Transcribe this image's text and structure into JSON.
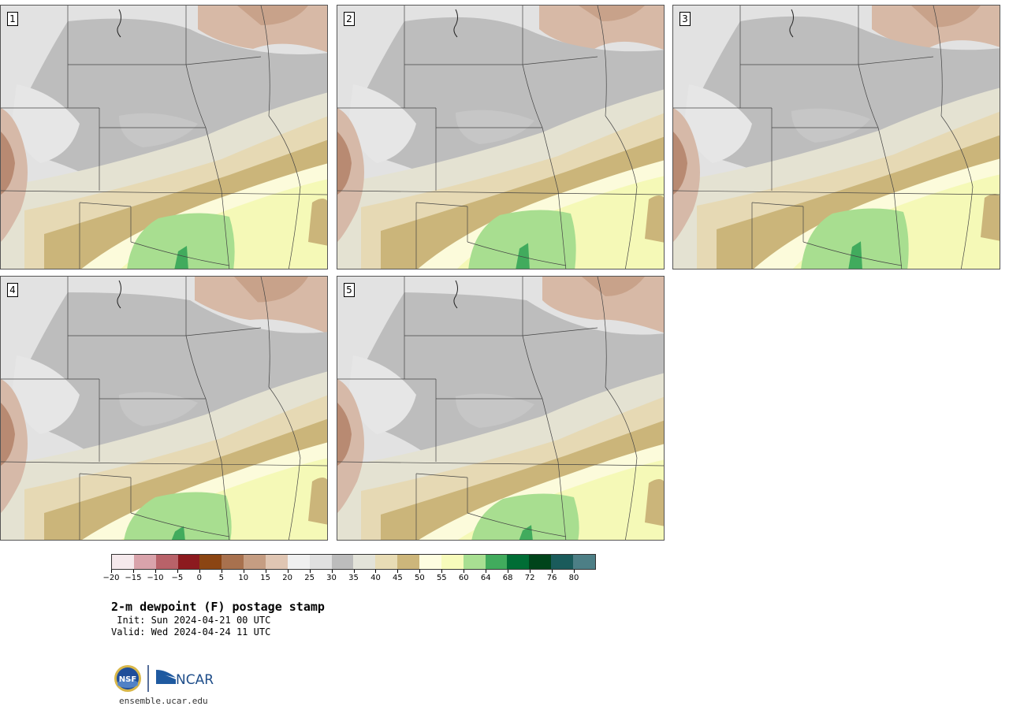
{
  "title": "2-m dewpoint (F) postage stamp",
  "init_line": " Init: Sun 2024-04-21 00 UTC",
  "valid_line": "Valid: Wed 2024-04-24 11 UTC",
  "website": "ensemble.ucar.edu",
  "logos": {
    "nsf": "NSF",
    "ncar": "NCAR"
  },
  "members": [
    {
      "label": "1"
    },
    {
      "label": "2"
    },
    {
      "label": "3"
    },
    {
      "label": "4"
    },
    {
      "label": "5"
    }
  ],
  "colorbar": {
    "tick_labels": [
      "−20",
      "−15",
      "−10",
      "−5",
      "0",
      "5",
      "10",
      "15",
      "20",
      "25",
      "30",
      "35",
      "40",
      "45",
      "50",
      "55",
      "60",
      "64",
      "68",
      "72",
      "76",
      "80"
    ],
    "colors": [
      "#f5e9ec",
      "#d9a3ab",
      "#b86269",
      "#8c1a1f",
      "#8b4513",
      "#a8714e",
      "#c59d82",
      "#e0c6b3",
      "#f0f0f0",
      "#e0e0e0",
      "#bcbcbc",
      "#e3e3d9",
      "#e8dcb5",
      "#cdb67b",
      "#fefde0",
      "#f7fbbb",
      "#a8df92",
      "#41ab5d",
      "#006d35",
      "#00441b",
      "#1a5b5b",
      "#4d7f86"
    ]
  }
}
